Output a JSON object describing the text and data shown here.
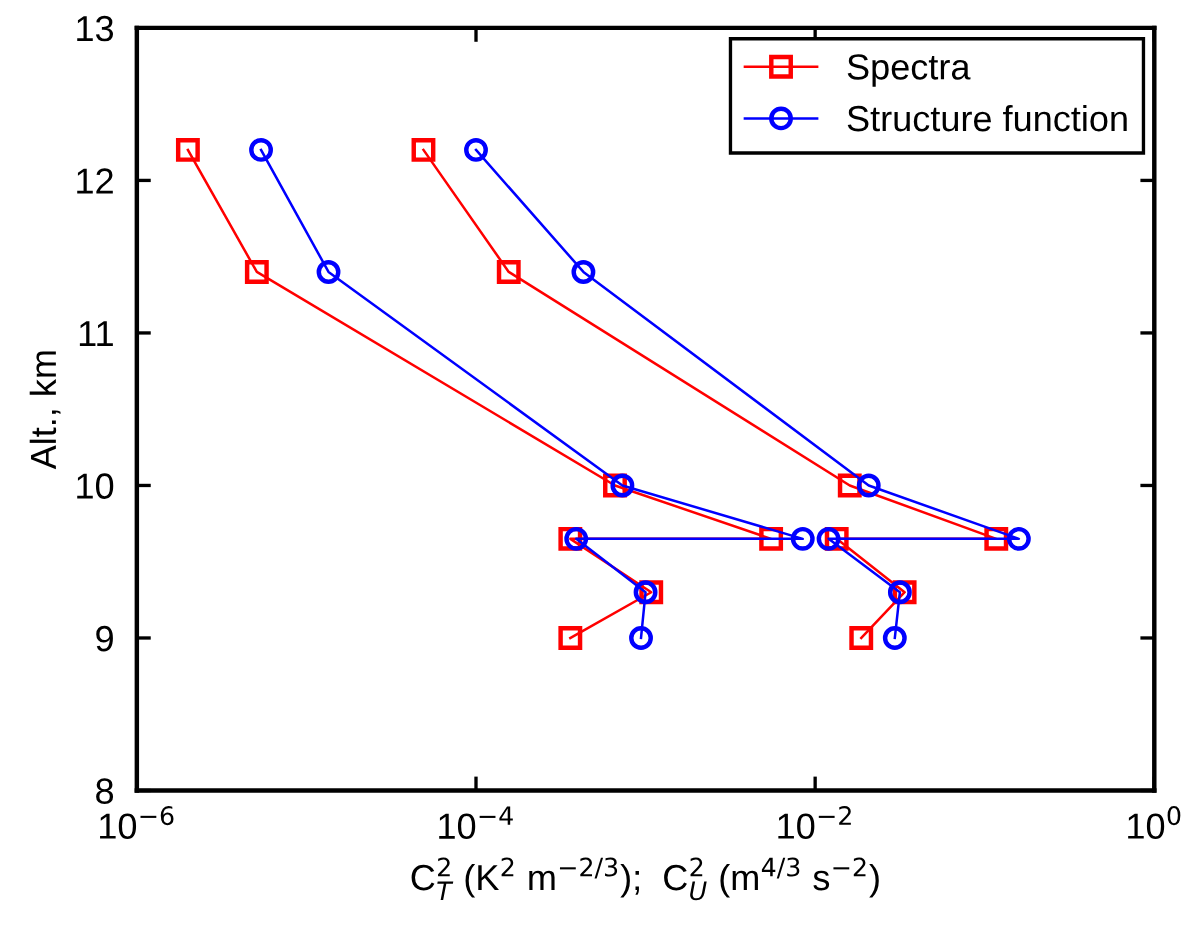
{
  "chart_data": {
    "type": "line",
    "xlabel": "C$^{2}$$_{T}$ (K$^{2}$ m$^{−2/3}$);  C$^{2}$$_{U}$ (m$^{4/3}$ s$^{−2}$)",
    "ylabel": "Alt., km",
    "log": "x",
    "xlim": [
      1e-06,
      1
    ],
    "xticks": [
      {
        "value": 1e-06,
        "label": "10$^{−6}$"
      },
      {
        "value": 0.0001,
        "label": "10$^{−4}$"
      },
      {
        "value": 0.01,
        "label": "10$^{−2}$"
      },
      {
        "value": 1,
        "label": "10$^{0}$"
      }
    ],
    "ylim": [
      8,
      13
    ],
    "yticks": [
      8,
      9,
      10,
      11,
      12,
      13
    ],
    "grid": false,
    "legend": "top right",
    "line_style": "solid",
    "series": [
      {
        "name": "Spectra",
        "color": "#ff0000",
        "marker": "square",
        "x": [
          2e-06,
          5.1e-06,
          0.00066,
          0.0055,
          0.00036,
          0.00108,
          0.00036
        ],
        "values": [
          12.2,
          11.4,
          10.0,
          9.65,
          9.65,
          9.3,
          9.0
        ]
      },
      {
        "color": "#ff0000",
        "marker": "square",
        "x": [
          4.9e-05,
          0.000156,
          0.016,
          0.117,
          0.0134,
          0.0337,
          0.0187
        ],
        "values": [
          12.2,
          11.4,
          10.0,
          9.65,
          9.65,
          9.3,
          9.0
        ]
      },
      {
        "name": "Structure function",
        "color": "#0000ff",
        "marker": "circle",
        "x": [
          5.4e-06,
          1.35e-05,
          0.00073,
          0.00845,
          0.00039,
          0.001,
          0.00094
        ],
        "values": [
          12.2,
          11.4,
          10.0,
          9.65,
          9.65,
          9.3,
          9.0
        ]
      },
      {
        "color": "#0000ff",
        "marker": "circle",
        "x": [
          0.0001,
          0.00043,
          0.0207,
          0.159,
          0.012,
          0.0316,
          0.0295
        ],
        "values": [
          12.2,
          11.4,
          10.0,
          9.65,
          9.65,
          9.3,
          9.0
        ]
      }
    ]
  }
}
